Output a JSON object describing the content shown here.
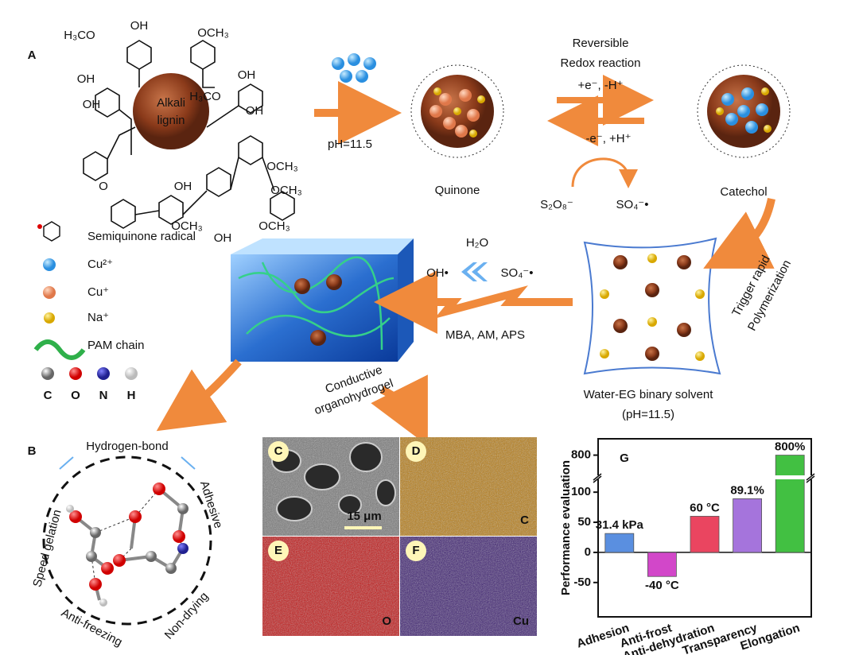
{
  "panel_labels": [
    "A",
    "B",
    "C",
    "D",
    "E",
    "F",
    "G"
  ],
  "panel_a": {
    "lignin_label": [
      "Alkali",
      "lignin"
    ],
    "structure_labels": [
      "H₃CO",
      "OH",
      "OCH₃",
      "OH",
      "OH",
      "H₃CO",
      "OH",
      "OCH₃",
      "OH",
      "OCH₃",
      "OCH₃",
      "OH",
      "OH",
      "O",
      "OCH₃"
    ],
    "ph": "pH=11.5",
    "redox_title": [
      "Reversible",
      "Redox reaction"
    ],
    "forward": "+e⁻, -H⁺",
    "backward": "-e⁻, +H⁺",
    "quinone": "Quinone",
    "catechol": "Catechol",
    "persulfate": "S₂O₈⁻",
    "sulfate_radical": "SO₄⁻•",
    "legend": [
      "Semiquinone radical",
      "Cu²⁺",
      "Cu⁺",
      "Na⁺",
      "PAM chain"
    ],
    "atoms": [
      "C",
      "O",
      "N",
      "H"
    ],
    "water": "H₂O",
    "hydroxyl_radical": "OH•",
    "sulfate_radical_2": "SO₄⁻•",
    "reagents": "MBA, AM, APS",
    "hydrogel": [
      "Conductive",
      "organohydrogel"
    ],
    "solvent": "Water-EG binary solvent",
    "solvent_ph": "(pH=11.5)",
    "trigger": [
      "Trigger rapid",
      "Polymerization"
    ]
  },
  "panel_b": {
    "title": "Hydrogen-bond",
    "properties": [
      "Speed gelation",
      "Adhesive",
      "Anti-freezing",
      "Non-drying"
    ]
  },
  "panel_cf": {
    "scale_bar": "15 μm",
    "elements": [
      "C",
      "O",
      "Cu"
    ]
  },
  "chart_data": {
    "type": "bar",
    "ylabel": "Performance evaluation",
    "categories": [
      "Adhesion",
      "Anti-frost",
      "Anti-dehydration",
      "Transparency",
      "Elongation"
    ],
    "values": [
      31.4,
      -40,
      60,
      89.1,
      800
    ],
    "value_labels": [
      "31.4 kPa",
      "-40 °C",
      "60 °C",
      "89.1%",
      "800%"
    ],
    "colors": [
      "#5a8fe0",
      "#d247c9",
      "#ea4560",
      "#a574dc",
      "#42c042"
    ],
    "ylim": [
      -107,
      120
    ],
    "ylim_upper": [
      760,
      830
    ],
    "yticks": [
      -50,
      0,
      50,
      100,
      800
    ],
    "axis_break": true
  }
}
